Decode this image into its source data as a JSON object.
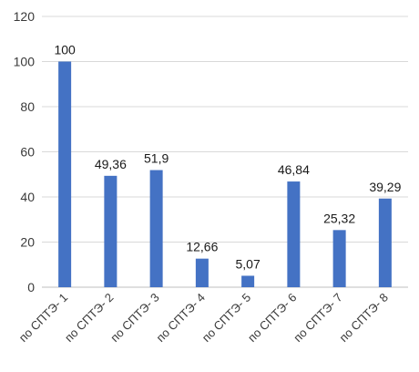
{
  "chart_data": {
    "type": "bar",
    "categories": [
      "по СПТЭ- 1",
      "по СПТЭ- 2",
      "по СПТЭ- 3",
      "по СПТЭ- 4",
      "по СПТЭ- 5",
      "по СПТЭ- 6",
      "по СПТЭ- 7",
      "по СПТЭ- 8"
    ],
    "values": [
      100,
      49.36,
      51.9,
      12.66,
      5.07,
      46.84,
      25.32,
      39.29
    ],
    "data_labels": [
      "100",
      "49,36",
      "51,9",
      "12,66",
      "5,07",
      "46,84",
      "25,32",
      "39,29"
    ],
    "yticks": [
      "0",
      "20",
      "40",
      "60",
      "80",
      "100",
      "120"
    ],
    "ylim": [
      0,
      120
    ],
    "grid": true,
    "bar_color": "#4472c4"
  }
}
